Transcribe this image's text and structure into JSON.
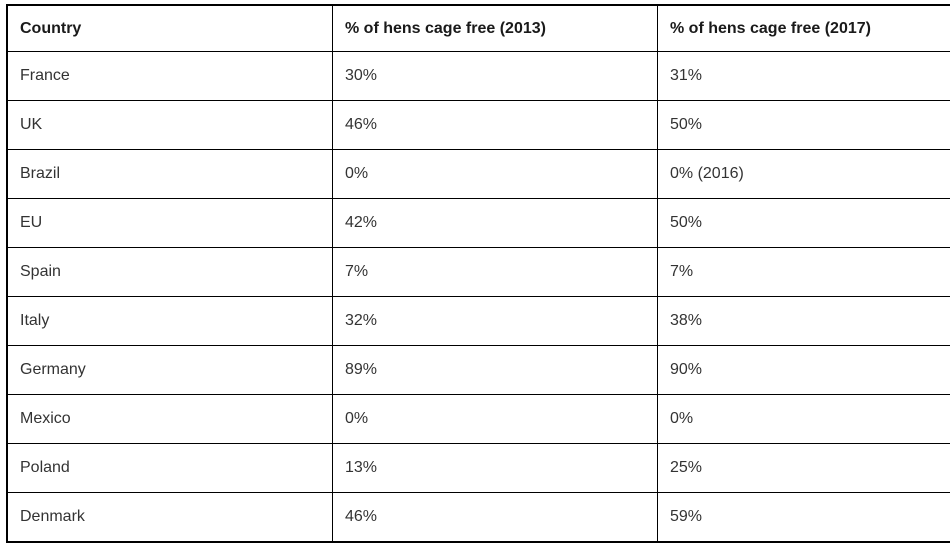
{
  "table": {
    "columns": [
      "Country",
      "% of hens cage free (2013)",
      "% of hens cage free (2017)"
    ],
    "rows": [
      [
        "France",
        "30%",
        "31%"
      ],
      [
        "UK",
        "46%",
        "50%"
      ],
      [
        "Brazil",
        "0%",
        "0% (2016)"
      ],
      [
        "EU",
        "42%",
        "50%"
      ],
      [
        "Spain",
        "7%",
        "7%"
      ],
      [
        "Italy",
        "32%",
        "38%"
      ],
      [
        "Germany",
        "89%",
        "90%"
      ],
      [
        "Mexico",
        "0%",
        "0%"
      ],
      [
        "Poland",
        "13%",
        "25%"
      ],
      [
        "Denmark",
        "46%",
        "59%"
      ]
    ],
    "colors": {
      "border": "#000000",
      "text": "#333333",
      "background": "#ffffff"
    }
  },
  "chart_data": {
    "type": "table",
    "title": "",
    "categories": [
      "France",
      "UK",
      "Brazil",
      "EU",
      "Spain",
      "Italy",
      "Germany",
      "Mexico",
      "Poland",
      "Denmark"
    ],
    "series": [
      {
        "name": "% of hens cage free (2013)",
        "values": [
          30,
          46,
          0,
          42,
          7,
          32,
          89,
          0,
          13,
          46
        ]
      },
      {
        "name": "% of hens cage free (2017)",
        "values": [
          31,
          50,
          0,
          50,
          7,
          38,
          90,
          0,
          25,
          59
        ]
      }
    ],
    "annotations": [
      "Brazil 2017 value is from 2016: '0% (2016)'"
    ],
    "layout": "3-column grid table, bold header row, black grid borders on white background"
  }
}
